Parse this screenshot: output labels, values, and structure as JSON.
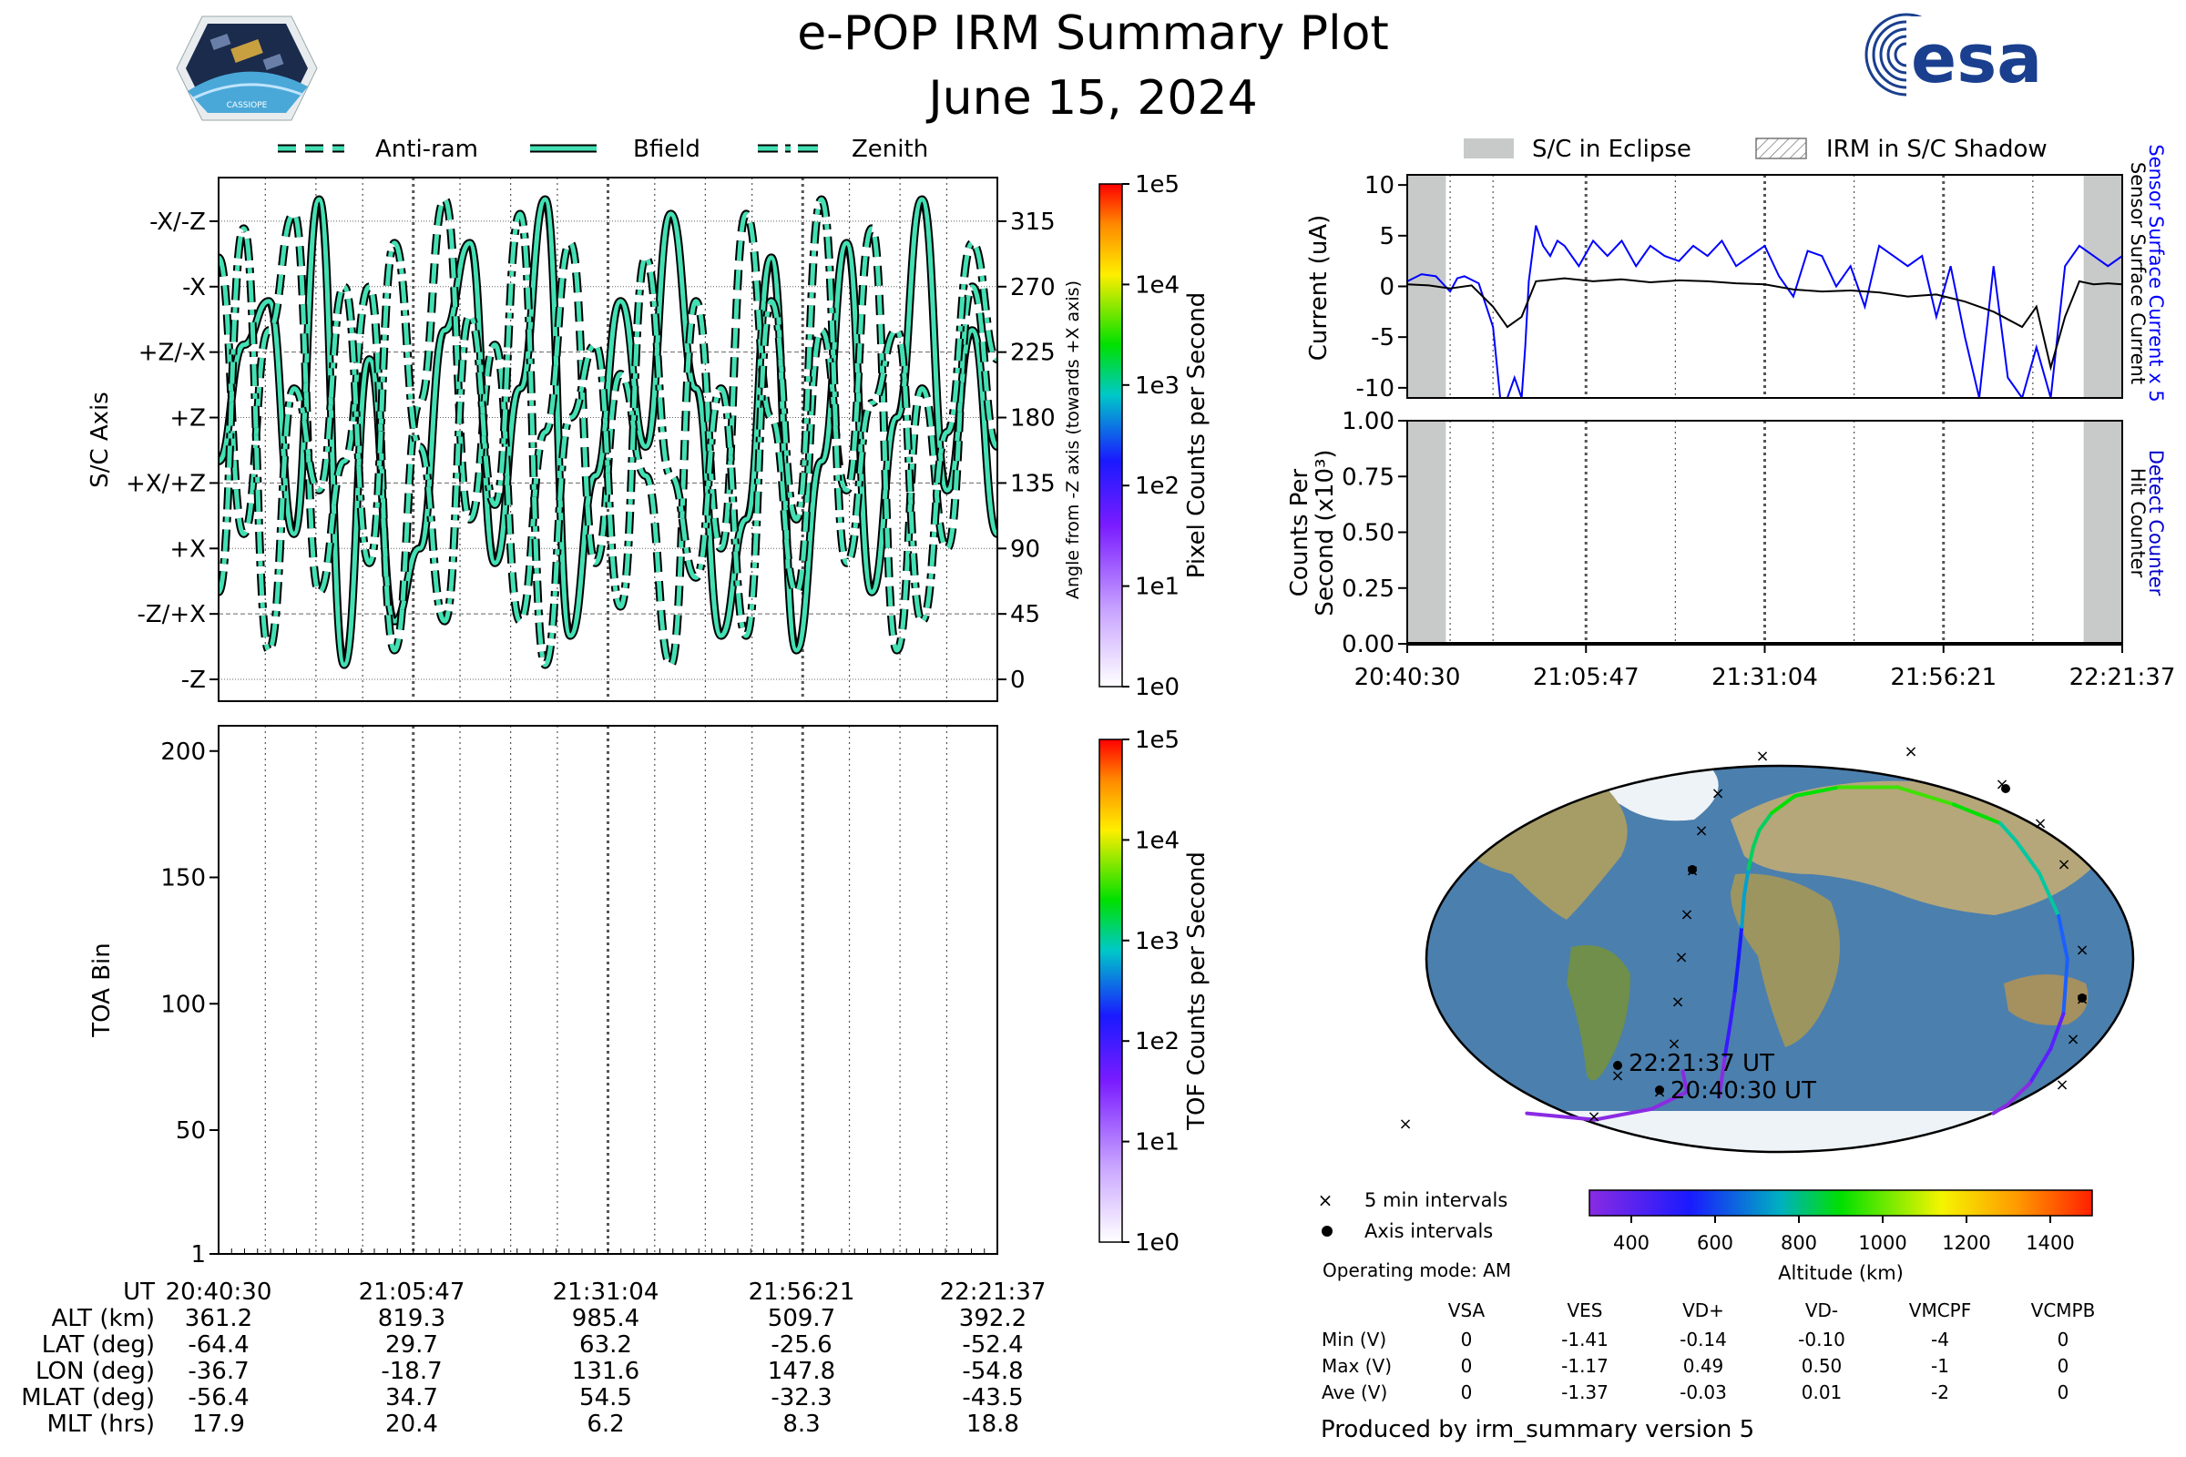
{
  "header": {
    "title": "e-POP IRM Summary Plot",
    "date": "June 15, 2024",
    "left_logo_text": "CASSIOPE",
    "right_logo_text": "esa",
    "icons": [
      "cassiope-mission-logo-icon",
      "esa-logo-icon"
    ]
  },
  "colors": {
    "trace_fill": "#43e0b4",
    "trace_edge": "#000000",
    "eclipse": "#c8c9c9",
    "current_sensor_x5": "#0000ff",
    "current_sensor": "#000000",
    "detect_counter": "#0000cc",
    "ocean": "#4b7fae",
    "ice": "#eef3f7",
    "land": "#b5a77a"
  },
  "chart_data": [
    {
      "id": "angle",
      "type": "line",
      "ylabel": "S/C Axis",
      "ylabel_right": "Angle from -Z axis (towards +X axis)",
      "left_ticks": [
        "-X/-Z",
        "-X",
        "+Z/-X",
        "+Z",
        "+X/+Z",
        "+X",
        "-Z/+X",
        "-Z"
      ],
      "right_ticks": [
        "315",
        "270",
        "225",
        "180",
        "135",
        "90",
        "45",
        "0"
      ],
      "ylim": [
        -15,
        345
      ],
      "legend": [
        "Anti-ram",
        "Bfield",
        "Zenith"
      ],
      "legend_placement": "top",
      "series": [
        {
          "name": "Bfield",
          "style": "solid",
          "y": [
            150,
            230,
            260,
            100,
            330,
            10,
            220,
            40,
            90,
            240,
            300,
            80,
            200,
            330,
            30,
            140,
            260,
            160,
            320,
            200,
            30,
            110,
            290,
            20,
            150,
            300,
            60,
            180,
            330,
            130,
            240,
            100
          ]
        },
        {
          "name": "Anti-ram",
          "style": "dashed",
          "y": [
            290,
            100,
            240,
            320,
            60,
            150,
            270,
            20,
            190,
            330,
            110,
            230,
            40,
            170,
            300,
            80,
            210,
            140,
            10,
            260,
            90,
            320,
            180,
            60,
            240,
            130,
            310,
            20,
            200,
            90,
            270,
            160
          ]
        },
        {
          "name": "Zenith",
          "style": "dash-dot",
          "y": [
            60,
            310,
            20,
            200,
            130,
            270,
            80,
            300,
            160,
            40,
            250,
            120,
            320,
            10,
            180,
            230,
            50,
            290,
            140,
            70,
            200,
            30,
            260,
            110,
            330,
            80,
            190,
            240,
            40,
            170,
            300,
            220
          ]
        }
      ],
      "colorbar": {
        "label": "Pixel Counts per Second",
        "ticks": [
          "1e0",
          "1e1",
          "1e2",
          "1e3",
          "1e4",
          "1e5"
        ]
      }
    },
    {
      "id": "toa",
      "type": "heatmap",
      "ylabel": "TOA Bin",
      "yticks": [
        "1",
        "50",
        "100",
        "150",
        "200"
      ],
      "ylim": [
        1,
        210
      ],
      "values": [],
      "colorbar": {
        "label": "TOF Counts per Second",
        "ticks": [
          "1e0",
          "1e1",
          "1e2",
          "1e3",
          "1e4",
          "1e5"
        ]
      }
    },
    {
      "id": "current",
      "type": "line",
      "ylabel": "Current (uA)",
      "yticks": [
        "10",
        "5",
        "0",
        "-5",
        "-10"
      ],
      "ylim": [
        -11,
        11
      ],
      "legend": [
        "S/C in Eclipse",
        "IRM in S/C Shadow"
      ],
      "legend_placement": "top",
      "right_labels": [
        "Sensor Surface Current x 5",
        "Sensor Surface Current"
      ],
      "eclipse_min": [
        [
          0,
          5.4
        ],
        [
          94.6,
          100
        ]
      ],
      "xmin": 0,
      "xmax": 100,
      "series": [
        {
          "name": "Sensor Surface Current x 5",
          "x": [
            0,
            2,
            4,
            6,
            7,
            8,
            10,
            12,
            13,
            14,
            15,
            16,
            16.5,
            17,
            18,
            19,
            20,
            21,
            22,
            24,
            26,
            28,
            30,
            32,
            34,
            36,
            38,
            40,
            42,
            44,
            46,
            48,
            50,
            52,
            54,
            56,
            58,
            60,
            62,
            64,
            66,
            68,
            70,
            72,
            74,
            76,
            78,
            80,
            82,
            84,
            86,
            88,
            90,
            92,
            94,
            96,
            98,
            100
          ],
          "y": [
            0.5,
            1.2,
            1.0,
            -0.5,
            0.8,
            1.0,
            0.3,
            -4,
            -11,
            -11,
            -9,
            -11,
            -6,
            0.5,
            6,
            4,
            3,
            4.5,
            4,
            2,
            4.5,
            3,
            4.5,
            2,
            4,
            3,
            2.5,
            4,
            3,
            4.5,
            2,
            3,
            4,
            1,
            -1,
            3.5,
            3,
            0,
            2,
            -2,
            4,
            3,
            2,
            3,
            -3,
            2,
            -5,
            -11,
            2,
            -9,
            -11,
            -6,
            -11,
            2,
            4,
            3,
            2,
            3
          ]
        },
        {
          "name": "Sensor Surface Current",
          "x": [
            0,
            3,
            6,
            9,
            12,
            14,
            16,
            18,
            22,
            26,
            30,
            34,
            38,
            42,
            46,
            50,
            54,
            58,
            62,
            66,
            70,
            74,
            78,
            82,
            86,
            88,
            90,
            92,
            94,
            96,
            98,
            100
          ],
          "y": [
            0.2,
            0.1,
            -0.2,
            0.1,
            -2,
            -4,
            -3,
            0.5,
            0.8,
            0.5,
            0.7,
            0.4,
            0.6,
            0.5,
            0.3,
            0.2,
            -0.3,
            -0.5,
            -0.4,
            -0.6,
            -1,
            -0.8,
            -1.5,
            -2.5,
            -4,
            -2,
            -8,
            -3,
            0.5,
            0.2,
            0.3,
            0.2
          ]
        }
      ]
    },
    {
      "id": "counts",
      "type": "line",
      "ylabel_line1": "Counts Per",
      "ylabel_line2": "Second (x10³)",
      "yticks": [
        "1.00",
        "0.75",
        "0.50",
        "0.25",
        "0.00"
      ],
      "ylim": [
        0,
        1
      ],
      "right_labels": [
        "Detect Counter",
        "Hit Counter"
      ],
      "xticks": [
        "20:40:30",
        "21:05:47",
        "21:31:04",
        "21:56:21",
        "22:21:37"
      ],
      "series": [
        {
          "name": "Detect Counter",
          "x": [
            0,
            100
          ],
          "y": [
            0,
            0
          ]
        },
        {
          "name": "Hit Counter",
          "x": [
            0,
            100
          ],
          "y": [
            0,
            0
          ]
        }
      ]
    },
    {
      "id": "ground-track",
      "type": "scatter",
      "labels": [
        "22:21:37 UT",
        "20:40:30 UT"
      ],
      "legend": [
        "5 min intervals",
        "Axis intervals"
      ],
      "colorbar": {
        "label": "Altitude (km)",
        "ticks": [
          "400",
          "600",
          "800",
          "1000",
          "1200",
          "1400"
        ],
        "range": [
          300,
          1500
        ]
      },
      "track": {
        "lon": [
          -36.7,
          -34,
          -30,
          -26,
          -23,
          -21,
          -19.5,
          -18.7,
          -17,
          -15,
          -12,
          -5,
          10,
          40,
          80,
          110,
          125,
          131.6,
          135,
          140,
          144,
          146.5,
          147.8,
          147,
          145,
          140,
          135
        ],
        "lat": [
          -64.4,
          -58,
          -45,
          -30,
          -15,
          0,
          15,
          29.7,
          42,
          52,
          60,
          68,
          76,
          80,
          80,
          72,
          66,
          63.2,
          55,
          40,
          20,
          0,
          -25.6,
          -42,
          -58,
          -68,
          -72
        ]
      },
      "track_tail": {
        "lon": [
          -160,
          -120,
          -80,
          -55,
          -54.8
        ],
        "lat": [
          -72,
          -75,
          -70,
          -62,
          -52.4
        ]
      }
    }
  ],
  "stats": {
    "legend_5min": "5 min intervals",
    "legend_axis": "Axis intervals",
    "operating_mode": "Operating mode: AM",
    "altitude_label": "Altitude (km)",
    "columns": [
      "VSA",
      "VES",
      "VD+",
      "VD-",
      "VMCPF",
      "VCMPB"
    ],
    "rows": [
      {
        "label": "Min (V)",
        "values": [
          "0",
          "-1.41",
          "-0.14",
          "-0.10",
          "-4",
          "0"
        ]
      },
      {
        "label": "Max (V)",
        "values": [
          "0",
          "-1.17",
          "0.49",
          "0.50",
          "-1",
          "0"
        ]
      },
      {
        "label": "Ave (V)",
        "values": [
          "0",
          "-1.37",
          "-0.03",
          "0.01",
          "-2",
          "0"
        ]
      }
    ],
    "footer": "Produced by irm_summary version 5"
  },
  "bottom_table": {
    "rows": [
      {
        "label": "UT",
        "values": [
          "20:40:30",
          "21:05:47",
          "21:31:04",
          "21:56:21",
          "22:21:37"
        ]
      },
      {
        "label": "ALT (km)",
        "values": [
          "361.2",
          "819.3",
          "985.4",
          "509.7",
          "392.2"
        ]
      },
      {
        "label": "LAT (deg)",
        "values": [
          "-64.4",
          "29.7",
          "63.2",
          "-25.6",
          "-52.4"
        ]
      },
      {
        "label": "LON (deg)",
        "values": [
          "-36.7",
          "-18.7",
          "131.6",
          "147.8",
          "-54.8"
        ]
      },
      {
        "label": "MLAT (deg)",
        "values": [
          "-56.4",
          "34.7",
          "54.5",
          "-32.3",
          "-43.5"
        ]
      },
      {
        "label": "MLT (hrs)",
        "values": [
          "17.9",
          "20.4",
          "6.2",
          "8.3",
          "18.8"
        ]
      }
    ]
  }
}
